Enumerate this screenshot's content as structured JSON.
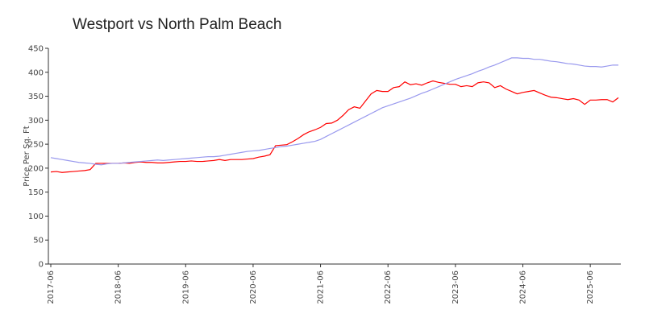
{
  "chart_data": {
    "type": "line",
    "title": "Westport vs North Palm Beach",
    "y_label": "Price Per Sq. Ft",
    "x": [
      "2017-06",
      "2017-07",
      "2017-08",
      "2017-09",
      "2017-10",
      "2017-11",
      "2017-12",
      "2018-01",
      "2018-02",
      "2018-03",
      "2018-04",
      "2018-05",
      "2018-06",
      "2018-07",
      "2018-08",
      "2018-09",
      "2018-10",
      "2018-11",
      "2018-12",
      "2019-01",
      "2019-02",
      "2019-03",
      "2019-04",
      "2019-05",
      "2019-06",
      "2019-07",
      "2019-08",
      "2019-09",
      "2019-10",
      "2019-11",
      "2019-12",
      "2020-01",
      "2020-02",
      "2020-03",
      "2020-04",
      "2020-05",
      "2020-06",
      "2020-07",
      "2020-08",
      "2020-09",
      "2020-10",
      "2020-11",
      "2020-12",
      "2021-01",
      "2021-02",
      "2021-03",
      "2021-04",
      "2021-05",
      "2021-06",
      "2021-07",
      "2021-08",
      "2021-09",
      "2021-10",
      "2021-11",
      "2021-12",
      "2022-01",
      "2022-02",
      "2022-03",
      "2022-04",
      "2022-05",
      "2022-06",
      "2022-07",
      "2022-08",
      "2022-09",
      "2022-10",
      "2022-11",
      "2022-12",
      "2023-01",
      "2023-02",
      "2023-03",
      "2023-04",
      "2023-05",
      "2023-06",
      "2023-07",
      "2023-08",
      "2023-09",
      "2023-10",
      "2023-11",
      "2023-12",
      "2024-01",
      "2024-02",
      "2024-03",
      "2024-04",
      "2024-05",
      "2024-06",
      "2024-07",
      "2024-08",
      "2024-09",
      "2024-10",
      "2024-11",
      "2024-12",
      "2025-01",
      "2025-02",
      "2025-03",
      "2025-04",
      "2025-05",
      "2025-06",
      "2025-07",
      "2025-08",
      "2025-09",
      "2025-10",
      "2025-11"
    ],
    "series": [
      {
        "color": "#ff0000",
        "values": [
          192,
          193,
          191,
          192,
          193,
          194,
          195,
          197,
          210,
          210,
          210,
          210,
          210,
          211,
          210,
          212,
          213,
          212,
          212,
          211,
          211,
          212,
          213,
          214,
          214,
          215,
          214,
          214,
          215,
          216,
          218,
          216,
          218,
          218,
          218,
          219,
          220,
          223,
          225,
          228,
          247,
          248,
          249,
          255,
          262,
          270,
          276,
          280,
          285,
          293,
          294,
          300,
          310,
          322,
          328,
          325,
          340,
          355,
          362,
          360,
          360,
          368,
          370,
          380,
          374,
          376,
          373,
          378,
          382,
          379,
          377,
          375,
          375,
          370,
          372,
          370,
          378,
          380,
          378,
          368,
          372,
          365,
          360,
          355,
          358,
          360,
          362,
          357,
          352,
          348,
          347,
          345,
          343,
          345,
          342,
          333,
          342,
          342,
          343,
          343,
          338,
          347
        ]
      },
      {
        "color": "#9999ee",
        "values": [
          222,
          220,
          218,
          216,
          214,
          212,
          211,
          210,
          208,
          207,
          209,
          210,
          210,
          211,
          212,
          213,
          214,
          215,
          216,
          217,
          216,
          217,
          218,
          219,
          220,
          221,
          222,
          223,
          224,
          224,
          225,
          227,
          229,
          231,
          233,
          235,
          236,
          237,
          239,
          241,
          243,
          245,
          246,
          248,
          250,
          252,
          254,
          256,
          260,
          266,
          272,
          278,
          284,
          290,
          296,
          302,
          308,
          314,
          320,
          326,
          330,
          334,
          338,
          342,
          346,
          351,
          356,
          360,
          365,
          370,
          375,
          380,
          385,
          389,
          393,
          397,
          402,
          406,
          411,
          415,
          420,
          425,
          430,
          430,
          429,
          429,
          427,
          427,
          425,
          423,
          422,
          420,
          418,
          417,
          415,
          413,
          412,
          412,
          411,
          413,
          415,
          415
        ]
      }
    ],
    "xticks": [
      "2017-06",
      "2018-06",
      "2019-06",
      "2020-06",
      "2021-06",
      "2022-06",
      "2023-06",
      "2024-06",
      "2025-06"
    ],
    "ylim": [
      0,
      450
    ],
    "yticks": [
      0,
      50,
      100,
      150,
      200,
      250,
      300,
      350,
      400,
      450
    ]
  }
}
